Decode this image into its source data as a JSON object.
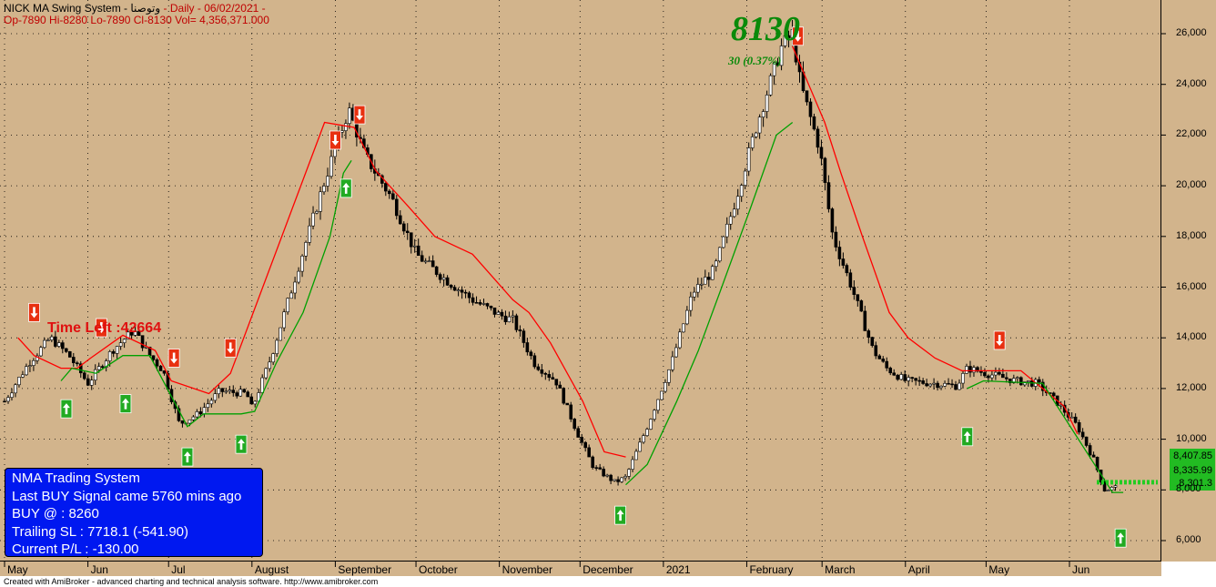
{
  "header": {
    "title": "NICK MA Swing System - ",
    "symbol": "وتوصنا",
    "rest": " - Daily  - 06/02/2021 -",
    "ohlc": "Op-7890  Hi-8280  Lo-7890  Cl-8130  Vol= 4,356,371.000"
  },
  "big_price": "8130",
  "change_text": "30  (0.37%)",
  "time_left": "Time Left :42664",
  "info_box": {
    "line1": "NMA Trading System",
    "line2": "Last BUY Signal came 5760 mins ago",
    "line3": "BUY @  : 8260",
    "line4": "Trailing SL : 7718.1 (-541.90)",
    "line5": "Current P/L : -130.00"
  },
  "price_boxes": [
    "8,407.85",
    "8,335.99",
    "8,301.3"
  ],
  "footer": "Created with AmiBroker - advanced charting and technical analysis software. http://www.amibroker.com",
  "colors": {
    "background": "#d2b48c",
    "up_candle": "#ffffff",
    "down_candle": "#000000",
    "resistance_line": "#ff0000",
    "support_line": "#00a000",
    "buy_arrow": "#22aa22",
    "sell_arrow": "#e83010",
    "info_box": "#0018f0"
  },
  "chart_data": {
    "type": "candlestick",
    "ylim": [
      5000,
      27000
    ],
    "y_ticks": [
      6000,
      8000,
      10000,
      12000,
      14000,
      16000,
      18000,
      20000,
      22000,
      24000,
      26000
    ],
    "y_tick_labels": [
      "6,000",
      "8,000",
      "10,000",
      "12,000",
      "14,000",
      "16,000",
      "18,000",
      "20,000",
      "22,000",
      "24,000",
      "26,000"
    ],
    "x_labels": [
      "May",
      "Jun",
      "Jul",
      "August",
      "September",
      "October",
      "November",
      "December",
      "2021",
      "February",
      "March",
      "April",
      "May",
      "Jun"
    ],
    "x_label_dates": [
      "2020-05-01",
      "2020-06-01",
      "2020-07-01",
      "2020-08-01",
      "2020-09-01",
      "2020-10-01",
      "2020-11-01",
      "2020-12-01",
      "2021-01-01",
      "2021-02-01",
      "2021-03-01",
      "2021-04-01",
      "2021-05-01",
      "2021-06-01"
    ],
    "grid": true,
    "close_path": [
      [
        "2020-05-01",
        11500
      ],
      [
        "2020-05-10",
        13000
      ],
      [
        "2020-05-18",
        14000
      ],
      [
        "2020-05-25",
        13300
      ],
      [
        "2020-06-01",
        12200
      ],
      [
        "2020-06-10",
        13500
      ],
      [
        "2020-06-18",
        14300
      ],
      [
        "2020-06-24",
        13300
      ],
      [
        "2020-06-29",
        12700
      ],
      [
        "2020-07-05",
        10600
      ],
      [
        "2020-07-12",
        11000
      ],
      [
        "2020-07-20",
        11900
      ],
      [
        "2020-07-30",
        11800
      ],
      [
        "2020-08-01",
        11200
      ],
      [
        "2020-08-08",
        13200
      ],
      [
        "2020-08-16",
        16000
      ],
      [
        "2020-08-26",
        19500
      ],
      [
        "2020-09-01",
        21500
      ],
      [
        "2020-09-06",
        23000
      ],
      [
        "2020-09-12",
        21200
      ],
      [
        "2020-09-22",
        19500
      ],
      [
        "2020-10-01",
        17300
      ],
      [
        "2020-10-12",
        16300
      ],
      [
        "2020-10-22",
        15500
      ],
      [
        "2020-11-01",
        14900
      ],
      [
        "2020-11-06",
        14700
      ],
      [
        "2020-11-14",
        13000
      ],
      [
        "2020-11-22",
        12300
      ],
      [
        "2020-12-01",
        10000
      ],
      [
        "2020-12-06",
        8900
      ],
      [
        "2020-12-14",
        8300
      ],
      [
        "2020-12-18",
        8500
      ],
      [
        "2020-12-26",
        10500
      ],
      [
        "2021-01-04",
        13000
      ],
      [
        "2021-01-12",
        15800
      ],
      [
        "2021-01-20",
        16700
      ],
      [
        "2021-01-28",
        19500
      ],
      [
        "2021-02-05",
        22500
      ],
      [
        "2021-02-14",
        25500
      ],
      [
        "2021-02-18",
        26000
      ],
      [
        "2021-02-21",
        24000
      ],
      [
        "2021-02-28",
        21500
      ],
      [
        "2021-03-05",
        18000
      ],
      [
        "2021-03-12",
        16000
      ],
      [
        "2021-03-20",
        13500
      ],
      [
        "2021-03-25",
        12800
      ],
      [
        "2021-04-01",
        12300
      ],
      [
        "2021-04-12",
        12200
      ],
      [
        "2021-04-20",
        12100
      ],
      [
        "2021-04-24",
        12800
      ],
      [
        "2021-05-01",
        12600
      ],
      [
        "2021-05-12",
        12300
      ],
      [
        "2021-05-20",
        12200
      ],
      [
        "2021-05-27",
        11500
      ],
      [
        "2021-06-04",
        10500
      ],
      [
        "2021-06-10",
        9200
      ],
      [
        "2021-06-14",
        8000
      ],
      [
        "2021-06-19",
        8130
      ]
    ],
    "resistance_line": [
      [
        "2020-05-06",
        14000
      ],
      [
        "2020-05-12",
        13300
      ],
      [
        "2020-05-22",
        12800
      ],
      [
        "2020-05-28",
        12800
      ],
      [
        "2020-06-02",
        13200
      ],
      [
        "2020-06-14",
        14100
      ],
      [
        "2020-06-26",
        13500
      ],
      [
        "2020-07-02",
        12300
      ],
      [
        "2020-07-16",
        11800
      ],
      [
        "2020-07-24",
        12600
      ],
      [
        "2020-08-28",
        22500
      ],
      [
        "2020-09-08",
        22300
      ],
      [
        "2020-09-16",
        20600
      ],
      [
        "2020-09-28",
        19200
      ],
      [
        "2020-10-08",
        18000
      ],
      [
        "2020-10-22",
        17300
      ],
      [
        "2020-11-06",
        15500
      ],
      [
        "2020-11-12",
        15000
      ],
      [
        "2020-11-20",
        13800
      ],
      [
        "2020-12-02",
        11500
      ],
      [
        "2020-12-10",
        9500
      ],
      [
        "2020-12-18",
        9300
      ],
      [
        "2021-02-18",
        25500
      ],
      [
        "2021-02-24",
        24000
      ],
      [
        "2021-03-02",
        22500
      ],
      [
        "2021-03-08",
        20500
      ],
      [
        "2021-03-16",
        18000
      ],
      [
        "2021-03-26",
        15000
      ],
      [
        "2021-04-02",
        14000
      ],
      [
        "2021-04-12",
        13200
      ],
      [
        "2021-04-22",
        12700
      ],
      [
        "2021-05-14",
        12700
      ],
      [
        "2021-05-22",
        12000
      ],
      [
        "2021-05-30",
        11300
      ],
      [
        "2021-06-04",
        10200
      ]
    ],
    "support_line": [
      [
        "2020-05-22",
        12300
      ],
      [
        "2020-05-26",
        12800
      ],
      [
        "2020-06-04",
        12600
      ],
      [
        "2020-06-14",
        13300
      ],
      [
        "2020-06-24",
        13300
      ],
      [
        "2020-07-08",
        10500
      ],
      [
        "2020-07-14",
        11000
      ],
      [
        "2020-07-28",
        11000
      ],
      [
        "2020-08-02",
        11100
      ],
      [
        "2020-08-10",
        13000
      ],
      [
        "2020-08-20",
        15000
      ],
      [
        "2020-08-30",
        18000
      ],
      [
        "2020-09-04",
        20500
      ],
      [
        "2020-09-07",
        21000
      ],
      [
        "2020-12-18",
        8200
      ],
      [
        "2020-12-26",
        9000
      ],
      [
        "2021-01-06",
        11500
      ],
      [
        "2021-01-14",
        13500
      ],
      [
        "2021-01-22",
        15800
      ],
      [
        "2021-02-02",
        19000
      ],
      [
        "2021-02-12",
        22000
      ],
      [
        "2021-02-18",
        22500
      ],
      [
        "2021-04-24",
        12000
      ],
      [
        "2021-04-30",
        12300
      ],
      [
        "2021-05-22",
        12200
      ],
      [
        "2021-06-17",
        7900
      ],
      [
        "2021-06-21",
        7900
      ]
    ],
    "buy_signals": [
      [
        "2020-05-24",
        11200
      ],
      [
        "2020-06-15",
        11400
      ],
      [
        "2020-07-08",
        9300
      ],
      [
        "2020-07-28",
        9800
      ],
      [
        "2020-09-05",
        19900
      ],
      [
        "2020-12-16",
        7000
      ],
      [
        "2021-04-24",
        10100
      ],
      [
        "2021-06-20",
        6100
      ]
    ],
    "sell_signals": [
      [
        "2020-05-12",
        15000
      ],
      [
        "2020-06-06",
        14400
      ],
      [
        "2020-07-03",
        13200
      ],
      [
        "2020-07-24",
        13600
      ],
      [
        "2020-09-01",
        21800
      ],
      [
        "2020-09-10",
        22800
      ],
      [
        "2021-02-20",
        25900
      ],
      [
        "2021-05-06",
        13900
      ]
    ],
    "current_price": 8130,
    "projection_value": 8301.3
  }
}
